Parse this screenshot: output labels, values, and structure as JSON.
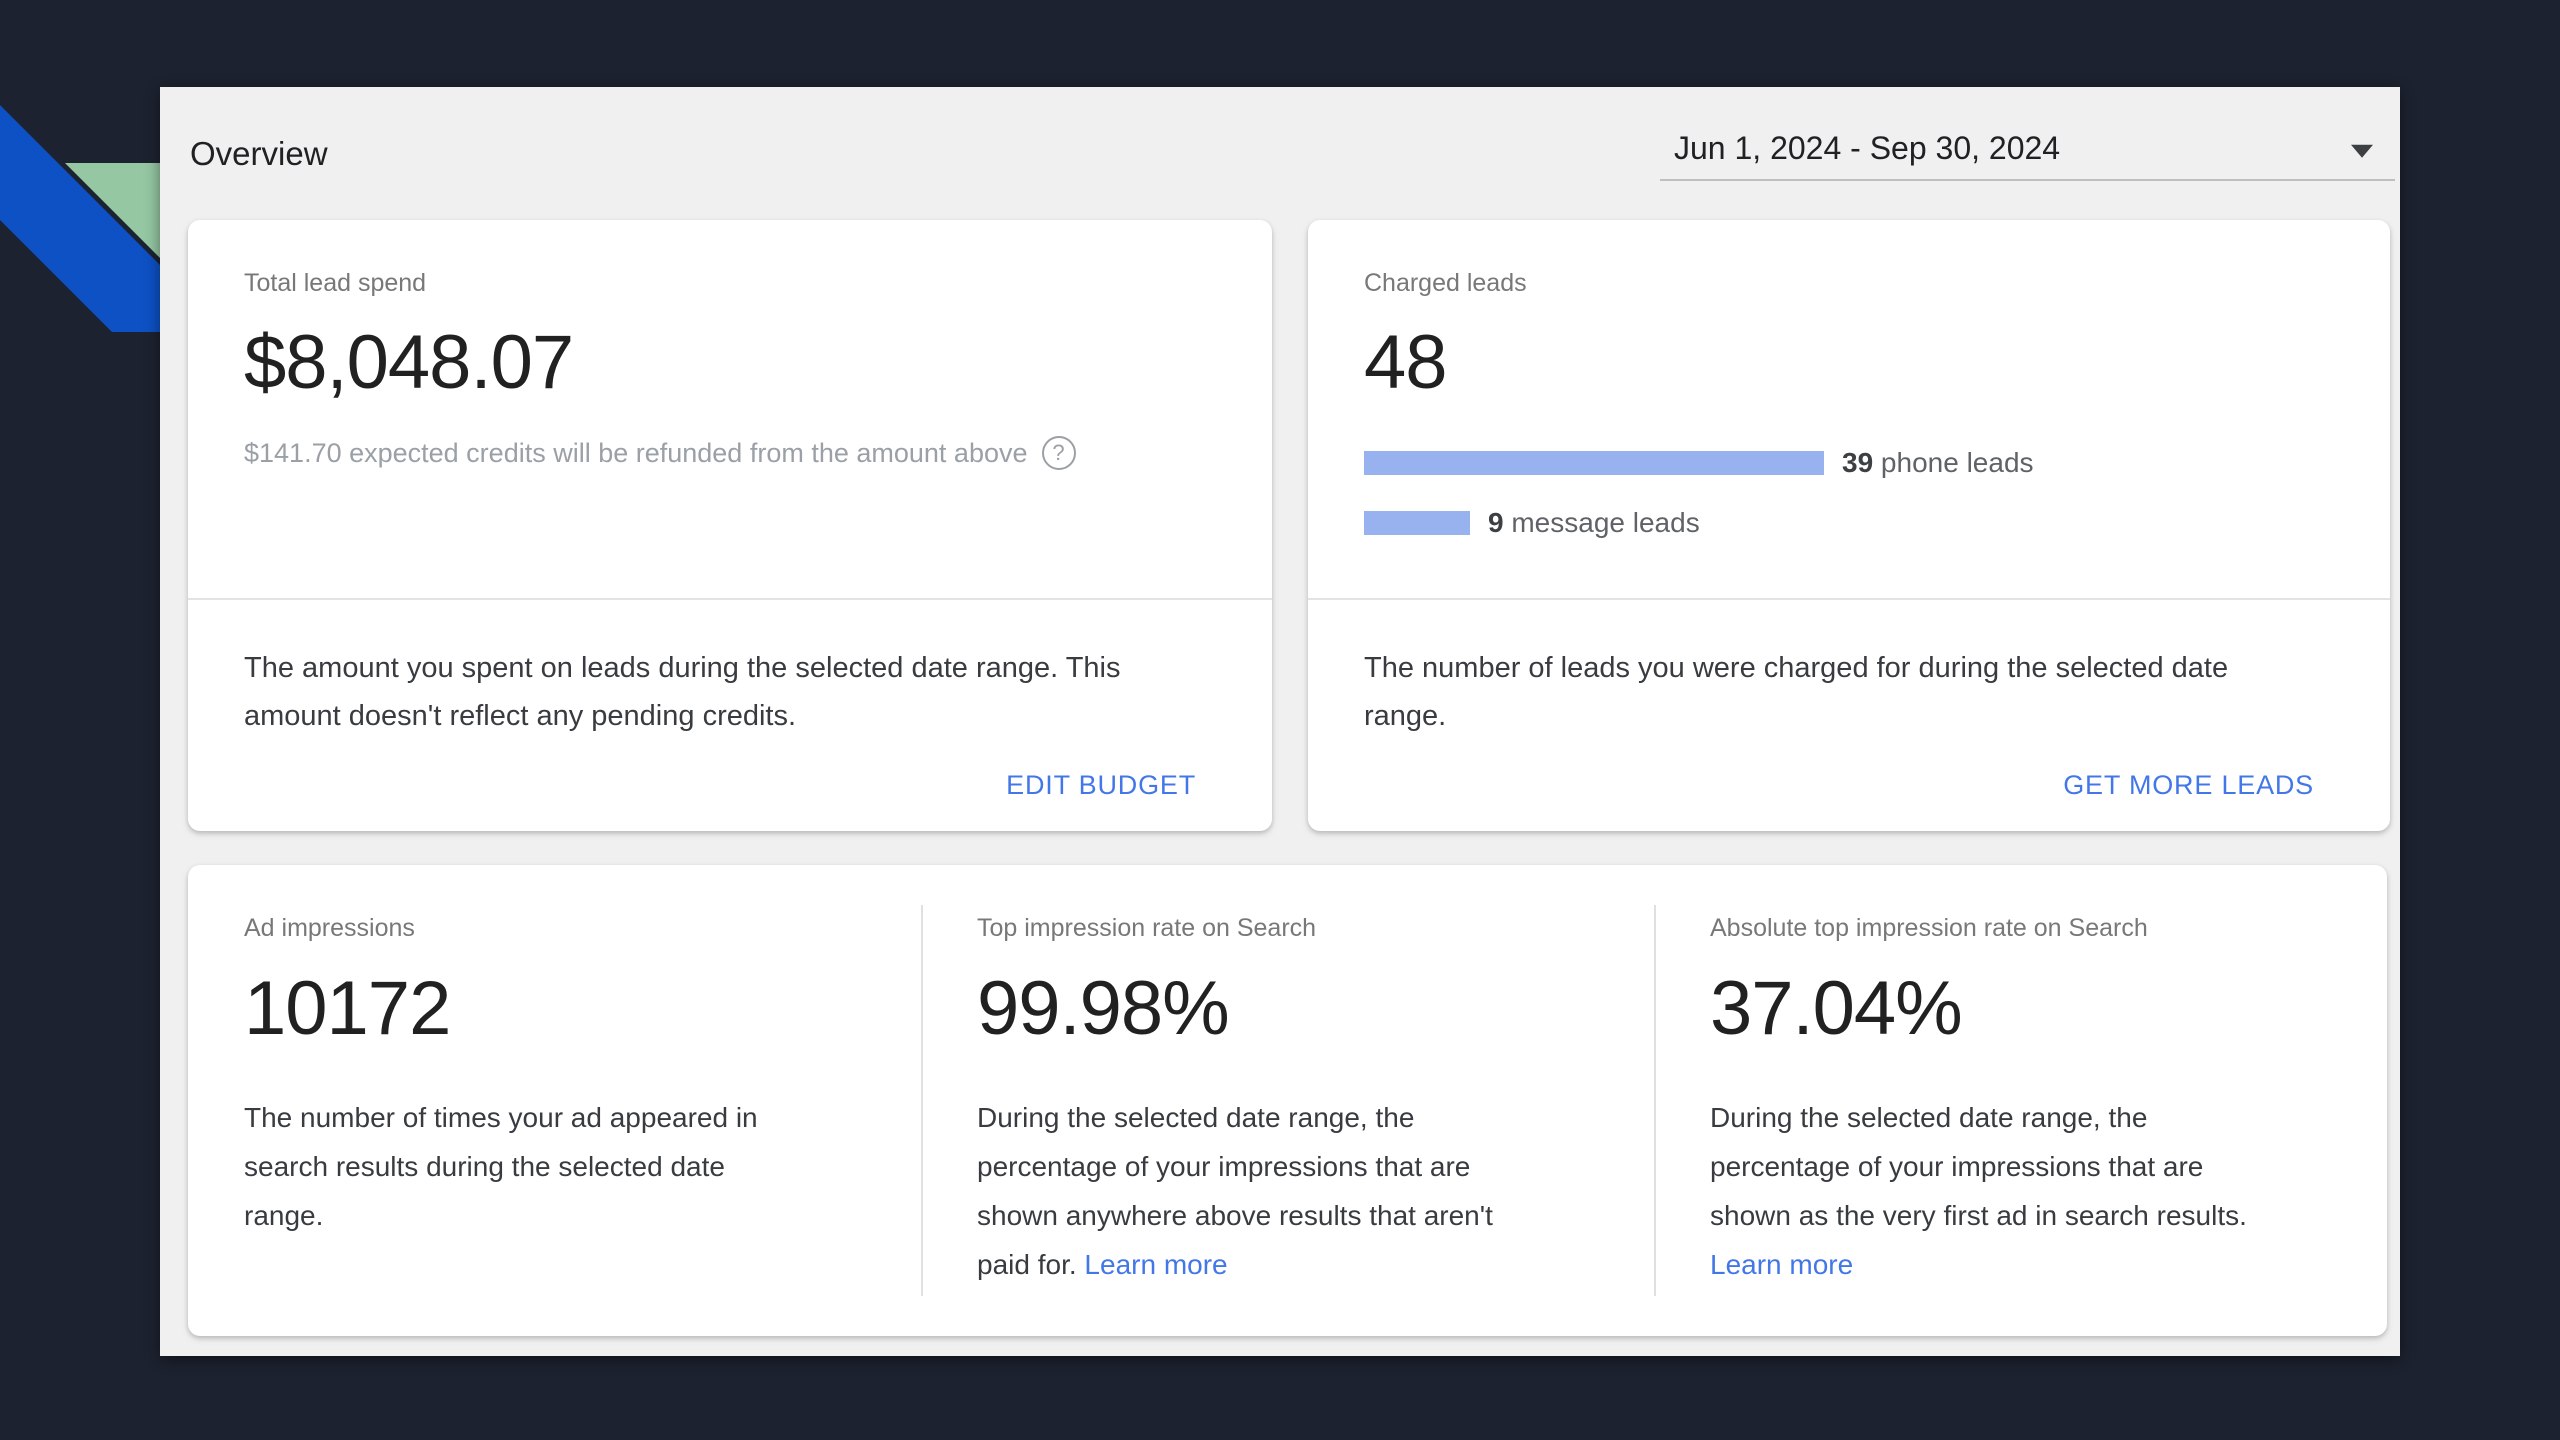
{
  "header": {
    "title": "Overview",
    "date_range": "Jun 1, 2024 - Sep 30, 2024"
  },
  "cards": {
    "lead_spend": {
      "label": "Total lead spend",
      "value": "$8,048.07",
      "note": "$141.70 expected credits will be refunded from the amount above",
      "help_glyph": "?",
      "description": "The amount you spent on leads during the selected date range. This amount doesn't reflect any pending credits.",
      "action_label": "EDIT BUDGET"
    },
    "charged_leads": {
      "label": "Charged leads",
      "value": "48",
      "description": "The number of leads you were charged for during the selected date range.",
      "action_label": "GET MORE LEADS"
    },
    "ad_impressions": {
      "label": "Ad impressions",
      "value": "10172",
      "description": "The number of times your ad appeared in search results during the selected date range."
    },
    "top_impression_rate": {
      "label": "Top impression rate on Search",
      "value": "99.98%",
      "description": "During the selected date range, the percentage of your impressions that are shown anywhere above results that aren't paid for.",
      "link_label": "Learn more"
    },
    "absolute_top_impression_rate": {
      "label": "Absolute top impression rate on Search",
      "value": "37.04%",
      "description": "During the selected date range, the percentage of your impressions that are shown as the very first ad in search results.",
      "link_label": "Learn more"
    }
  },
  "chart_data": {
    "type": "bar",
    "title": "Charged leads",
    "orientation": "horizontal",
    "total": 48,
    "categories": [
      " phone leads",
      " message leads"
    ],
    "values": [
      39,
      9
    ],
    "bar_color": "#97b2ef",
    "grid": false,
    "legend": "none"
  },
  "colors": {
    "background": "#1d2230",
    "ribbon_blue": "#0d51c5",
    "ribbon_green": "#95c7a3",
    "panel_bg": "#f0f0f0",
    "card_bg": "#ffffff",
    "link_blue": "#4377e8",
    "bar_fill": "#97b2ef",
    "label_gray": "#787878",
    "note_gray": "#9aa0a6",
    "text_dark": "#212121"
  }
}
